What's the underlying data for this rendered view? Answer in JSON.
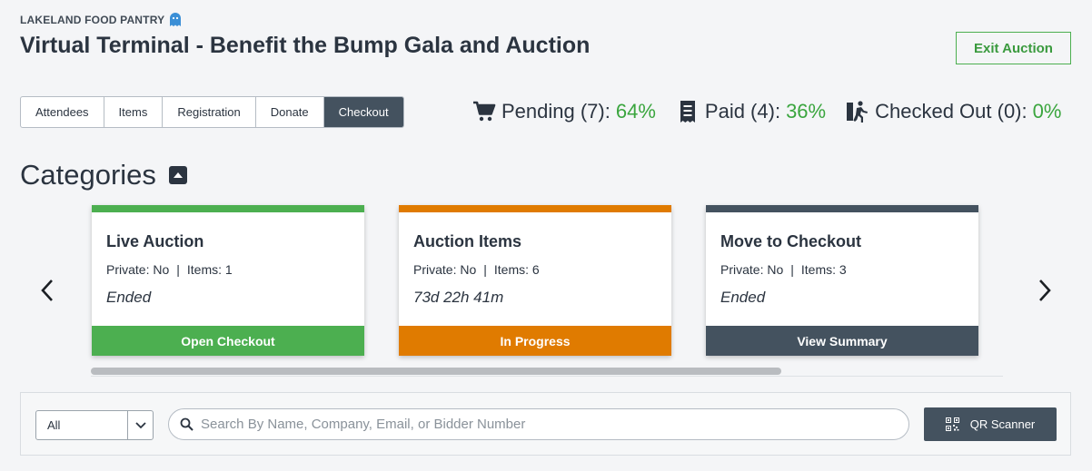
{
  "header": {
    "org_name": "LAKELAND FOOD PANTRY",
    "org_icon": "ghost-icon",
    "title": "Virtual Terminal - Benefit the Bump Gala and Auction",
    "exit_label": "Exit Auction"
  },
  "tabs": [
    {
      "label": "Attendees",
      "active": false
    },
    {
      "label": "Items",
      "active": false
    },
    {
      "label": "Registration",
      "active": false
    },
    {
      "label": "Donate",
      "active": false
    },
    {
      "label": "Checkout",
      "active": true
    }
  ],
  "stats": [
    {
      "icon": "cart-icon",
      "label": "Pending (7):",
      "percent": "64%"
    },
    {
      "icon": "receipt-icon",
      "label": "Paid (4):",
      "percent": "36%"
    },
    {
      "icon": "person-exit-icon",
      "label": "Checked Out (0):",
      "percent": "0%"
    }
  ],
  "categories": {
    "heading": "Categories",
    "cards": [
      {
        "title": "Live Auction",
        "private": "Private: No",
        "items": "Items: 1",
        "status": "Ended",
        "action": "Open Checkout",
        "color": "#4caf50"
      },
      {
        "title": "Auction Items",
        "private": "Private: No",
        "items": "Items: 6",
        "status": "73d 22h 41m",
        "action": "In Progress",
        "color": "#e07b00"
      },
      {
        "title": "Move to Checkout",
        "private": "Private: No",
        "items": "Items: 3",
        "status": "Ended",
        "action": "View Summary",
        "color": "#44525f"
      }
    ],
    "separator": "|"
  },
  "filter": {
    "select_value": "All",
    "search_placeholder": "Search By Name, Company, Email, or Bidder Number",
    "qr_label": "QR Scanner"
  },
  "colors": {
    "accent_green": "#3aa53e",
    "dark_slate": "#44525f",
    "orange": "#e07b00"
  }
}
